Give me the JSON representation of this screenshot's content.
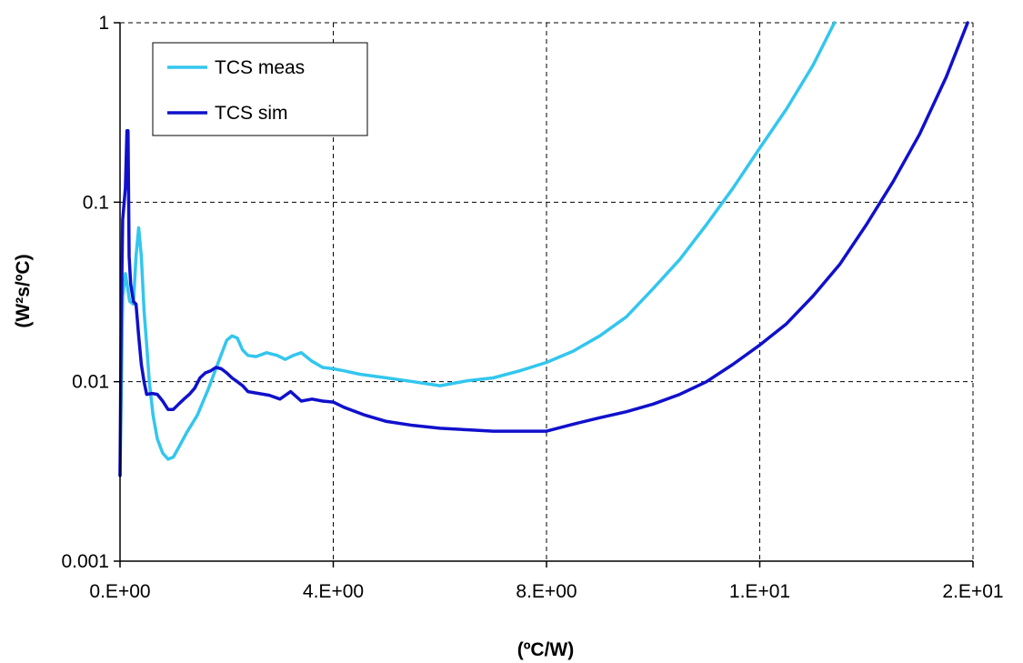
{
  "chart_data": {
    "type": "line",
    "title": "",
    "xlabel": "(ºC/W)",
    "ylabel": "(W²s/ºC)",
    "y_scale": "log",
    "xlim": [
      0,
      16
    ],
    "ylim": [
      0.001,
      1
    ],
    "x_ticks": [
      0,
      4,
      8,
      12,
      16
    ],
    "x_tick_labels": [
      "0.E+00",
      "4.E+00",
      "8.E+00",
      "1.E+01",
      "2.E+01"
    ],
    "y_ticks": [
      0.001,
      0.01,
      0.1,
      1
    ],
    "y_tick_labels": [
      "0.001",
      "0.01",
      "0.1",
      "1"
    ],
    "grid": true,
    "grid_style": "dashed",
    "legend": "top-left",
    "colors": {
      "TCS meas": "#33c6ee",
      "TCS sim": "#1010cc"
    },
    "series": [
      {
        "name": "TCS meas",
        "color": "#33c6ee",
        "x": [
          0.0,
          0.05,
          0.1,
          0.18,
          0.25,
          0.3,
          0.35,
          0.4,
          0.45,
          0.5,
          0.55,
          0.62,
          0.7,
          0.8,
          0.9,
          1.0,
          1.1,
          1.25,
          1.45,
          1.65,
          1.85,
          2.0,
          2.1,
          2.2,
          2.3,
          2.4,
          2.55,
          2.75,
          2.95,
          3.1,
          3.25,
          3.4,
          3.6,
          3.8,
          4.0,
          4.2,
          4.5,
          5.0,
          5.5,
          6.0,
          6.5,
          7.0,
          7.5,
          8.0,
          8.5,
          9.0,
          9.5,
          10.0,
          10.5,
          11.0,
          11.5,
          12.0,
          12.5,
          13.0,
          13.4
        ],
        "y": [
          0.003,
          0.03,
          0.04,
          0.028,
          0.027,
          0.05,
          0.072,
          0.05,
          0.025,
          0.016,
          0.01,
          0.0065,
          0.0048,
          0.004,
          0.0037,
          0.0038,
          0.0043,
          0.0052,
          0.0065,
          0.009,
          0.013,
          0.017,
          0.018,
          0.0175,
          0.015,
          0.014,
          0.0138,
          0.0145,
          0.014,
          0.0133,
          0.014,
          0.0145,
          0.013,
          0.012,
          0.0118,
          0.0115,
          0.011,
          0.0105,
          0.01,
          0.0095,
          0.0101,
          0.0105,
          0.0115,
          0.0128,
          0.0148,
          0.018,
          0.023,
          0.033,
          0.048,
          0.075,
          0.12,
          0.2,
          0.33,
          0.58,
          1.0
        ]
      },
      {
        "name": "TCS sim",
        "color": "#1010cc",
        "x": [
          0.0,
          0.02,
          0.05,
          0.1,
          0.13,
          0.15,
          0.17,
          0.2,
          0.25,
          0.3,
          0.35,
          0.4,
          0.45,
          0.5,
          0.6,
          0.7,
          0.8,
          0.9,
          1.0,
          1.1,
          1.2,
          1.3,
          1.4,
          1.5,
          1.6,
          1.7,
          1.8,
          1.9,
          2.0,
          2.1,
          2.2,
          2.3,
          2.4,
          2.6,
          2.8,
          3.0,
          3.2,
          3.4,
          3.6,
          3.8,
          4.0,
          4.2,
          4.6,
          5.0,
          5.5,
          6.0,
          6.5,
          7.0,
          7.5,
          8.0,
          8.5,
          9.0,
          9.5,
          10.0,
          10.5,
          11.0,
          11.5,
          12.0,
          12.5,
          13.0,
          13.5,
          14.0,
          14.5,
          15.0,
          15.5,
          15.9
        ],
        "y": [
          0.003,
          0.02,
          0.08,
          0.12,
          0.25,
          0.25,
          0.05,
          0.035,
          0.028,
          0.027,
          0.018,
          0.0125,
          0.01,
          0.0085,
          0.0086,
          0.0085,
          0.0078,
          0.007,
          0.007,
          0.0075,
          0.008,
          0.0085,
          0.0092,
          0.0105,
          0.0112,
          0.0115,
          0.012,
          0.0118,
          0.0112,
          0.0105,
          0.01,
          0.0095,
          0.0088,
          0.0086,
          0.0084,
          0.008,
          0.0088,
          0.0078,
          0.008,
          0.0078,
          0.0077,
          0.0072,
          0.0065,
          0.006,
          0.0057,
          0.0055,
          0.0054,
          0.0053,
          0.0053,
          0.0053,
          0.0058,
          0.0063,
          0.0068,
          0.0075,
          0.0085,
          0.01,
          0.0125,
          0.016,
          0.021,
          0.03,
          0.045,
          0.075,
          0.13,
          0.24,
          0.5,
          1.0
        ]
      }
    ]
  }
}
